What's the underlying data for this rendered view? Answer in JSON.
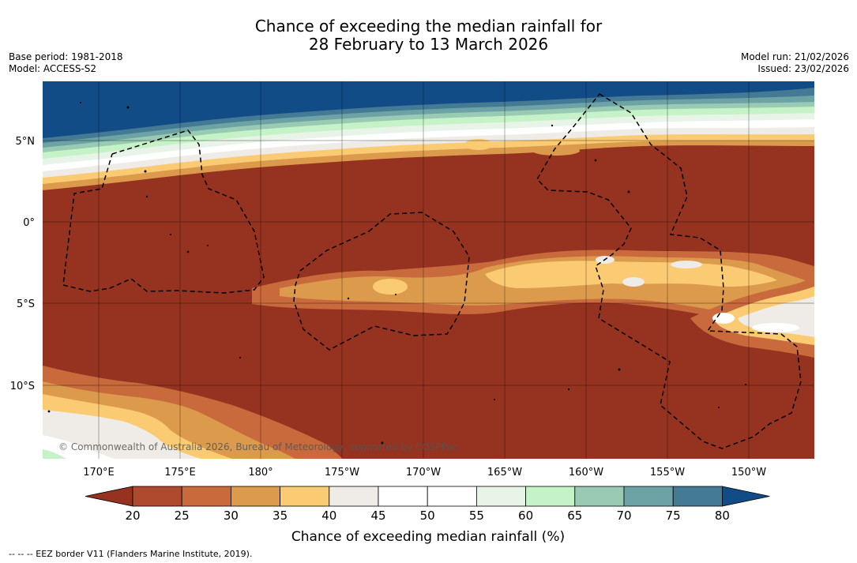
{
  "title": {
    "line1": "Chance of exceeding the median rainfall for",
    "line2": "28 February to 13 March 2026"
  },
  "meta": {
    "base_period": "Base period: 1981-2018",
    "model": "Model: ACCESS-S2",
    "model_run": "Model run: 21/02/2026",
    "issued": "Issued: 23/02/2026"
  },
  "map": {
    "copyright": "© Commonwealth of Australia 2026, Bureau of Meteorology, supported by COSPPac",
    "lat_labels": [
      "5°N",
      "0°",
      "5°S",
      "10°S"
    ],
    "lon_labels": [
      "170°E",
      "175°E",
      "180°",
      "175°W",
      "170°W",
      "165°W",
      "160°W",
      "155°W",
      "150°W"
    ],
    "colors": {
      "dry": "#963220",
      "ocean_deep": "#124C87"
    }
  },
  "colorbar": {
    "label": "Chance of exceeding median rainfall (%)",
    "ticks": [
      "20",
      "25",
      "30",
      "35",
      "40",
      "45",
      "50",
      "55",
      "60",
      "65",
      "70",
      "75",
      "80"
    ],
    "colors": [
      "#963220",
      "#AF4A2E",
      "#C96A3C",
      "#DC9A4C",
      "#FBCB74",
      "#EFEBE6",
      "#FFFFFF",
      "#FFFFFF",
      "#E8F4E8",
      "#C6F2C8",
      "#99CAB3",
      "#6DA3A5",
      "#457A95",
      "#124C87"
    ]
  },
  "footnote": "--  --  -- EEZ border V11 (Flanders Marine Institute, 2019)."
}
